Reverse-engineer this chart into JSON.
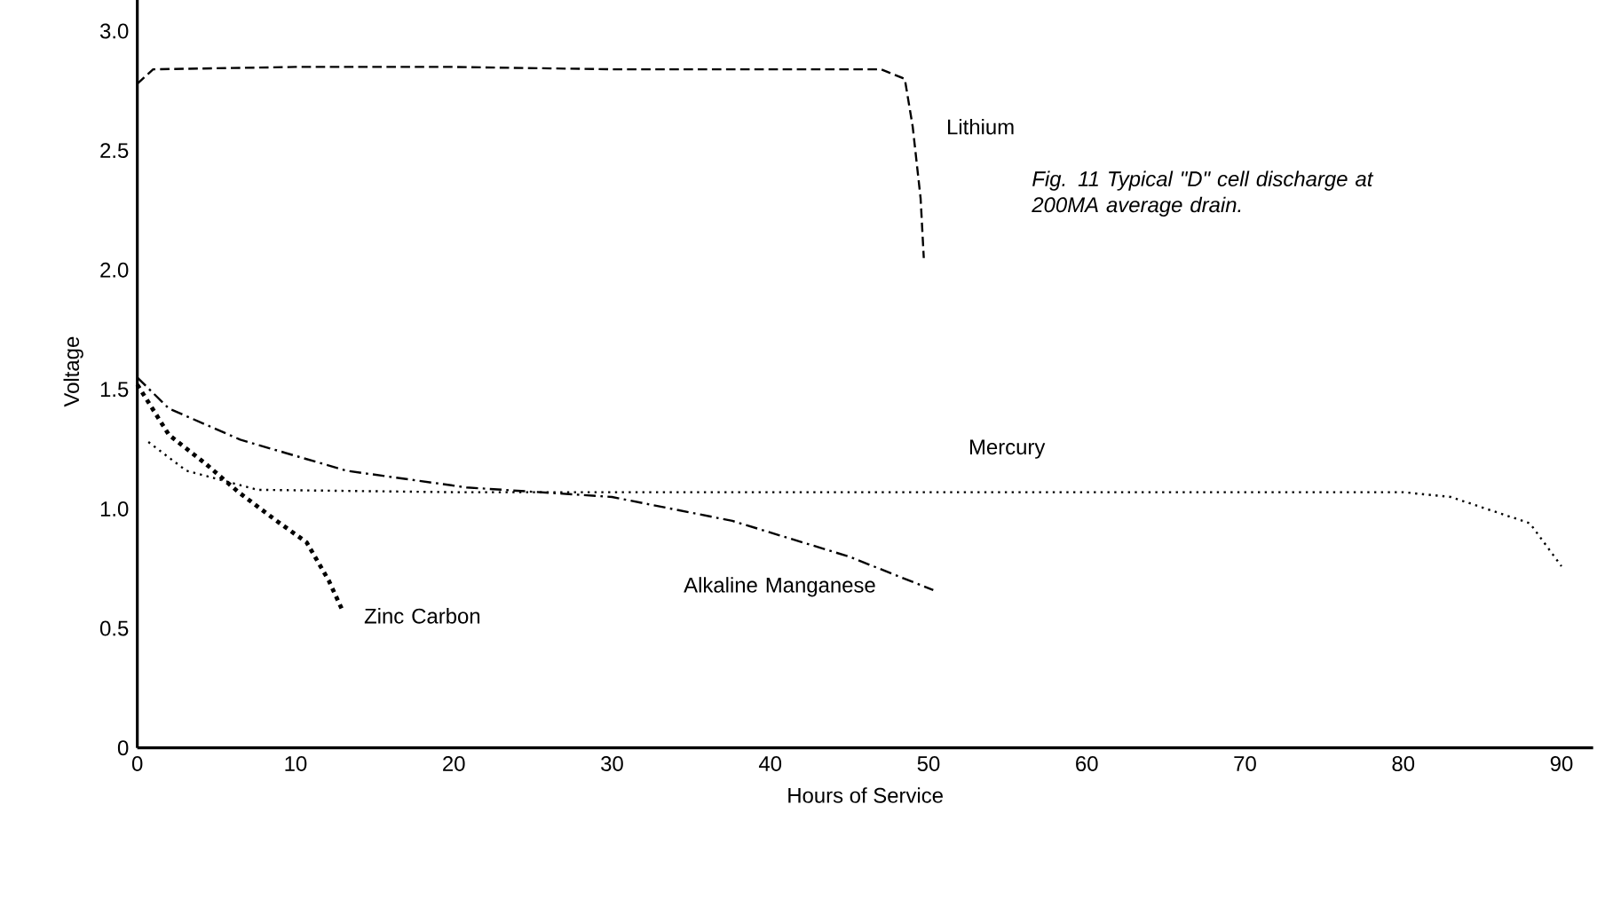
{
  "chart_data": {
    "type": "line",
    "xlabel": "Hours of Service",
    "ylabel": "Voltage",
    "annotations": [
      "Fig. 11 Typical \"D\" cell discharge at 200MA average drain."
    ],
    "xlim": [
      0,
      92
    ],
    "ylim": [
      0,
      3.15
    ],
    "xticks": [
      0,
      10,
      20,
      30,
      40,
      50,
      60,
      70,
      80,
      90
    ],
    "yticks": [
      0,
      0.5,
      {
        "value": 1,
        "label": "1.0"
      },
      1.5,
      {
        "value": 2,
        "label": "2.0"
      },
      2.5,
      {
        "value": 3,
        "label": "3.0"
      }
    ],
    "grid": false,
    "legend": false,
    "marker": "none",
    "series": [
      {
        "name": "Lithium",
        "color": "#000000",
        "line_style": "dashed",
        "x": [
          0,
          1,
          10,
          20,
          30,
          40,
          47,
          48.5,
          49,
          49.5,
          49.7
        ],
        "values": [
          2.78,
          2.84,
          2.85,
          2.85,
          2.84,
          2.84,
          2.84,
          2.8,
          2.6,
          2.3,
          2.05
        ]
      },
      {
        "name": "Zinc Carbon",
        "color": "#000000",
        "line_style": "dotted",
        "x": [
          0,
          2,
          4.3,
          6.4,
          8.8,
          10.7,
          12.1,
          13
        ],
        "values": [
          1.52,
          1.31,
          1.19,
          1.07,
          0.95,
          0.86,
          0.7,
          0.57
        ]
      },
      {
        "name": "Alkaline Manganese",
        "color": "#000000",
        "line_style": "dashdot",
        "x": [
          0,
          2,
          6.5,
          13.2,
          20.8,
          30,
          37.6,
          45,
          50.3
        ],
        "values": [
          1.55,
          1.42,
          1.29,
          1.16,
          1.09,
          1.05,
          0.95,
          0.8,
          0.66
        ]
      },
      {
        "name": "Mercury",
        "color": "#000000",
        "line_style": "dotted",
        "x": [
          0.7,
          3.1,
          7.6,
          20,
          40,
          60,
          80,
          83,
          88,
          90
        ],
        "values": [
          1.28,
          1.16,
          1.08,
          1.07,
          1.07,
          1.07,
          1.07,
          1.05,
          0.94,
          0.76
        ]
      }
    ]
  }
}
